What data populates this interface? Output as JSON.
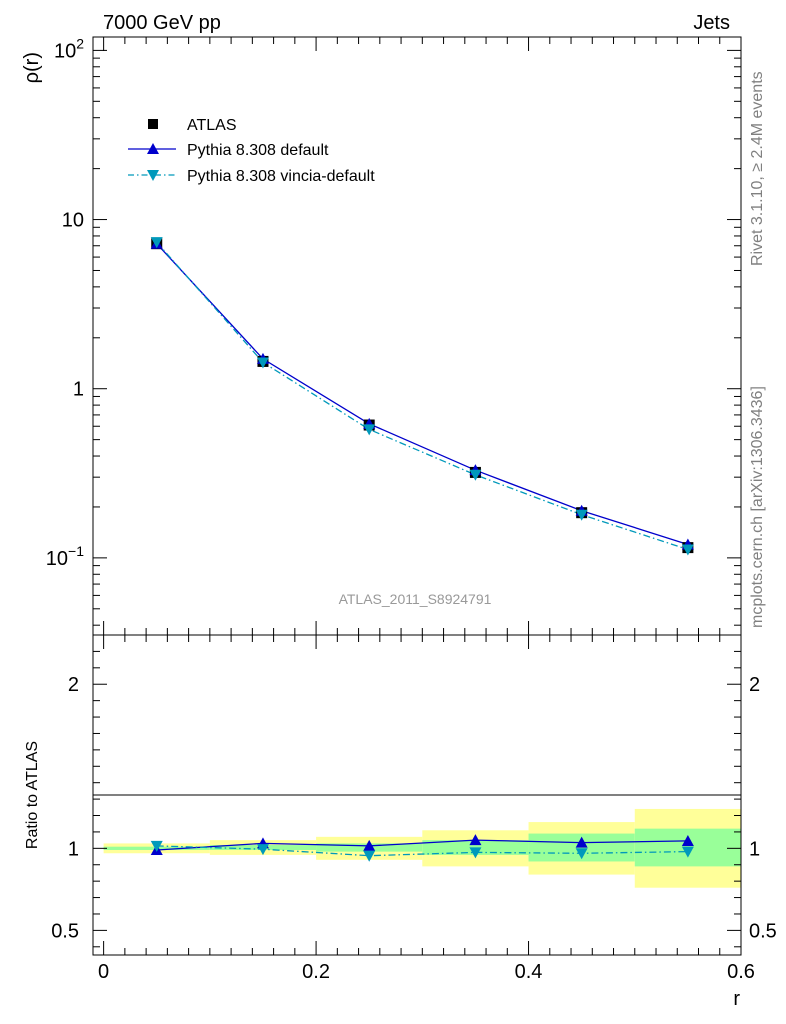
{
  "header": {
    "left": "7000 GeV pp",
    "right": "Jets"
  },
  "side_text": {
    "rivet": "Rivet 3.1.10, ≥ 2.4M events",
    "source": "mcplots.cern.ch [arXiv:1306.3436]"
  },
  "analysis_label": "ATLAS_2011_S8924791",
  "legend": {
    "atlas": "ATLAS",
    "default": "Pythia 8.308 default",
    "vincia": "Pythia 8.308 vincia-default"
  },
  "colors": {
    "data": "#000000",
    "default": "#0000cc",
    "vincia": "#0099bb",
    "band_outer": "#ffff99",
    "band_inner": "#99ff99"
  },
  "chart_data": [
    {
      "type": "line",
      "panel": "main",
      "ylabel": "ρ(r)",
      "yscale": "log",
      "ylim": [
        0.035,
        120
      ],
      "xlim": [
        -0.01,
        0.6
      ],
      "y_ticks": [
        {
          "value": 100,
          "base": "10",
          "exp": "2"
        },
        {
          "value": 10,
          "label": "10"
        },
        {
          "value": 1,
          "label": "1"
        },
        {
          "value": 0.1,
          "base": "10",
          "exp": "−1"
        }
      ],
      "x": [
        0.05,
        0.15,
        0.25,
        0.35,
        0.45,
        0.55
      ],
      "series": [
        {
          "name": "ATLAS",
          "values": [
            7.2,
            1.45,
            0.61,
            0.32,
            0.185,
            0.115
          ]
        },
        {
          "name": "Pythia 8.308 default",
          "values": [
            7.2,
            1.5,
            0.62,
            0.33,
            0.19,
            0.12
          ]
        },
        {
          "name": "Pythia 8.308 vincia-default",
          "values": [
            7.35,
            1.43,
            0.575,
            0.31,
            0.18,
            0.112
          ]
        }
      ]
    },
    {
      "type": "line",
      "panel": "ratio",
      "ylabel": "Ratio to ATLAS",
      "xlabel": "r",
      "ylim": [
        0.35,
        2.3
      ],
      "xlim": [
        -0.01,
        0.6
      ],
      "y_ticks": [
        "0.5",
        "1",
        "2"
      ],
      "x_ticks": [
        "0",
        "0.2",
        "0.4",
        "0.6"
      ],
      "bins": [
        [
          0.0,
          0.1
        ],
        [
          0.1,
          0.2
        ],
        [
          0.2,
          0.3
        ],
        [
          0.3,
          0.4
        ],
        [
          0.4,
          0.5
        ],
        [
          0.5,
          0.6
        ]
      ],
      "band_outer": [
        [
          0.97,
          1.03
        ],
        [
          0.96,
          1.05
        ],
        [
          0.93,
          1.07
        ],
        [
          0.89,
          1.11
        ],
        [
          0.84,
          1.16
        ],
        [
          0.76,
          1.24
        ]
      ],
      "band_inner": [
        [
          0.99,
          1.01
        ],
        [
          0.99,
          1.02
        ],
        [
          0.98,
          1.03
        ],
        [
          0.96,
          1.05
        ],
        [
          0.92,
          1.09
        ],
        [
          0.89,
          1.12
        ]
      ],
      "x": [
        0.05,
        0.15,
        0.25,
        0.35,
        0.45,
        0.55
      ],
      "series": [
        {
          "name": "Pythia 8.308 default",
          "values": [
            0.99,
            1.03,
            1.015,
            1.05,
            1.035,
            1.045
          ]
        },
        {
          "name": "Pythia 8.308 vincia-default",
          "values": [
            1.015,
            0.995,
            0.955,
            0.975,
            0.97,
            0.98
          ]
        }
      ]
    }
  ]
}
